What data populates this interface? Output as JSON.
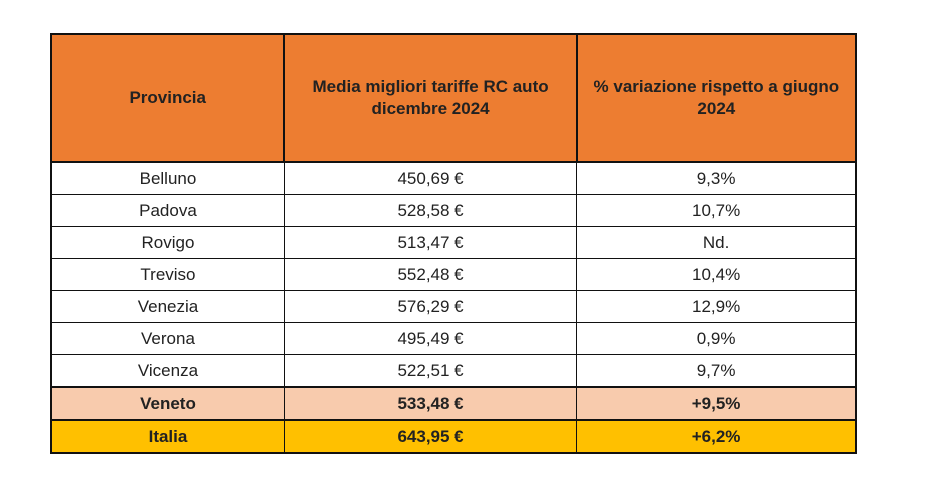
{
  "colors": {
    "header": "#ED7D31",
    "veneto": "#F8CBAD",
    "italia": "#FFC000"
  },
  "headers": [
    "Provincia",
    "Media migliori tariffe RC auto dicembre 2024",
    "% variazione rispetto a giugno 2024"
  ],
  "rows": [
    [
      "Belluno",
      "450,69 €",
      "9,3%"
    ],
    [
      "Padova",
      "528,58 €",
      "10,7%"
    ],
    [
      "Rovigo",
      "513,47 €",
      "Nd."
    ],
    [
      "Treviso",
      "552,48 €",
      "10,4%"
    ],
    [
      "Venezia",
      "576,29 €",
      "12,9%"
    ],
    [
      "Verona",
      "495,49 €",
      "0,9%"
    ],
    [
      "Vicenza",
      "522,51 €",
      "9,7%"
    ]
  ],
  "veneto": [
    "Veneto",
    "533,48 €",
    "+9,5%"
  ],
  "italia": [
    "Italia",
    "643,95 €",
    "+6,2%"
  ]
}
